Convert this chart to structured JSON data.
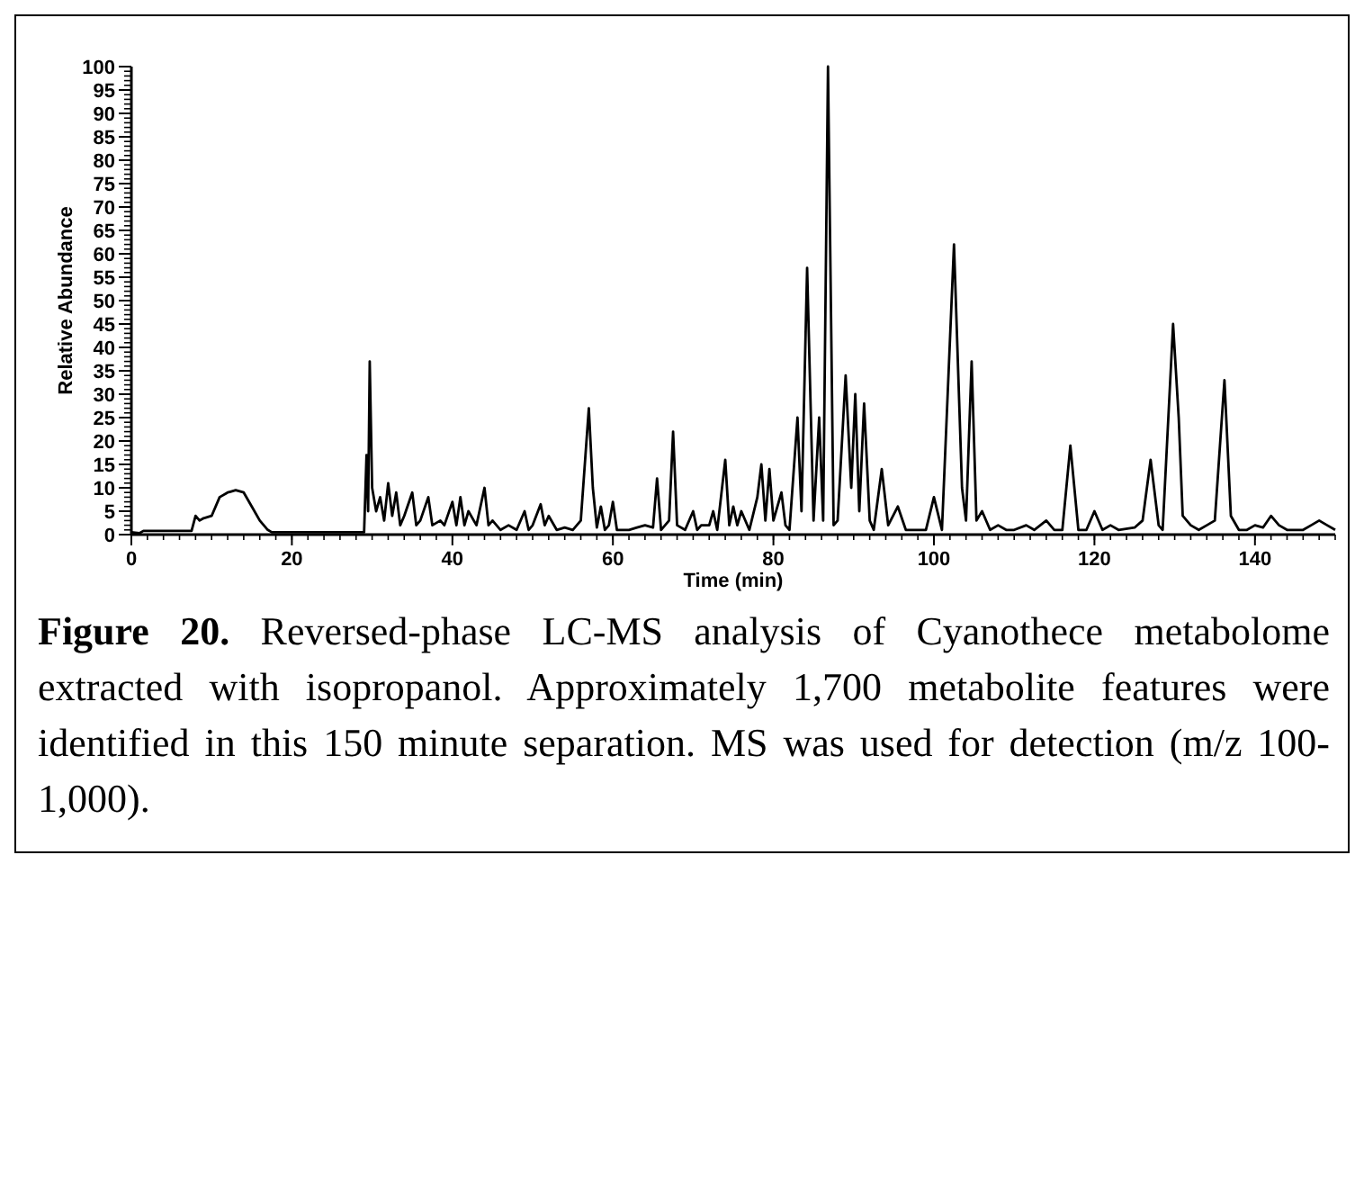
{
  "chart_data": {
    "type": "line",
    "title": "Figure 20.",
    "annotations": [
      "Reversed-phase LC-MS analysis of Cyanothece metabolome extracted with isopropanol.  Approximately 1,700 metabolite features were identified in this 150 minute separation.  MS was used for detection (m/z 100-1,000)."
    ],
    "xlabel": "Time (min)",
    "ylabel": "Relative Abundance",
    "xlim": [
      0,
      150
    ],
    "ylim": [
      0,
      100
    ],
    "xticks": [
      0,
      20,
      40,
      60,
      80,
      100,
      120,
      140
    ],
    "yticks": [
      0,
      5,
      10,
      15,
      20,
      25,
      30,
      35,
      40,
      45,
      50,
      55,
      60,
      65,
      70,
      75,
      80,
      85,
      90,
      95,
      100
    ],
    "grid": false,
    "marker": "none",
    "line_style": "solid",
    "series": [
      {
        "color": "#000000",
        "x": [
          0,
          1,
          1.5,
          7.5,
          8,
          8.5,
          9,
          10,
          11,
          12,
          13,
          14,
          15,
          16,
          17,
          17.5,
          29,
          29.3,
          29.5,
          29.7,
          30,
          30.5,
          31,
          31.5,
          32,
          32.5,
          33,
          33.5,
          34,
          35,
          35.5,
          36,
          37,
          37.5,
          38.5,
          39,
          40,
          40.5,
          41,
          41.5,
          42,
          43,
          44,
          44.5,
          45,
          46,
          47,
          48,
          49,
          49.5,
          50,
          51,
          51.5,
          52,
          53,
          54,
          55,
          56,
          57,
          57.5,
          58,
          58.5,
          59,
          59.5,
          60,
          60.5,
          62,
          63,
          64,
          65,
          65.5,
          66,
          67,
          67.5,
          68,
          69,
          70,
          70.5,
          71,
          72,
          72.5,
          73,
          74,
          74.5,
          75,
          75.5,
          76,
          77,
          78,
          78.5,
          79,
          79.5,
          80,
          81,
          81.5,
          82,
          83,
          83.5,
          84.2,
          85,
          85.7,
          86.2,
          86.8,
          87.5,
          88,
          89,
          89.7,
          90.2,
          90.7,
          91.3,
          92,
          92.5,
          93.5,
          94.3,
          95.5,
          96.5,
          98,
          99,
          100,
          101,
          102.5,
          103.5,
          104,
          104.7,
          105.3,
          106,
          107,
          108,
          109,
          110,
          111.5,
          112.5,
          114,
          115,
          116,
          117,
          118,
          119,
          120,
          121,
          122,
          123,
          125,
          126,
          127,
          128,
          128.5,
          129.8,
          130.5,
          131,
          132,
          133,
          134,
          135,
          136.2,
          137,
          138,
          139,
          140,
          141,
          142,
          143,
          144,
          145,
          146,
          147,
          148,
          149,
          150
        ],
        "values": [
          0.5,
          0.3,
          0.8,
          0.8,
          4,
          3,
          3.5,
          4,
          8,
          9,
          9.5,
          9,
          6,
          3,
          1,
          0.5,
          0.5,
          17,
          5,
          37,
          10,
          5,
          8,
          3,
          11,
          4,
          9,
          2,
          4,
          9,
          2,
          3,
          8,
          2,
          3,
          2,
          7,
          2,
          8,
          2,
          5,
          2,
          10,
          2,
          3,
          1,
          2,
          1,
          5,
          1,
          2,
          6.5,
          2,
          4,
          1,
          1.5,
          1,
          3,
          27,
          10,
          1.5,
          6,
          1,
          2,
          7,
          1,
          1,
          1.5,
          2,
          1.5,
          12,
          1,
          3,
          22,
          2,
          1,
          5,
          1,
          2,
          2,
          5,
          1,
          16,
          2,
          6,
          2,
          5,
          1,
          8,
          15,
          3,
          14,
          3,
          9,
          2,
          1,
          25,
          5,
          57,
          3,
          25,
          3,
          100,
          2,
          3,
          34,
          10,
          30,
          5,
          28,
          3,
          1,
          14,
          2,
          6,
          1,
          1,
          1,
          8,
          1,
          62,
          10,
          3,
          37,
          3,
          5,
          1,
          2,
          1,
          1,
          2,
          1,
          3,
          1,
          1,
          19,
          1,
          1,
          5,
          1,
          2,
          1,
          1.5,
          3,
          16,
          2,
          1,
          45,
          25,
          4,
          2,
          1,
          2,
          3,
          33,
          4,
          1,
          1,
          2,
          1.5,
          4,
          2,
          1,
          1,
          1,
          2,
          3,
          2,
          1
        ]
      }
    ]
  }
}
